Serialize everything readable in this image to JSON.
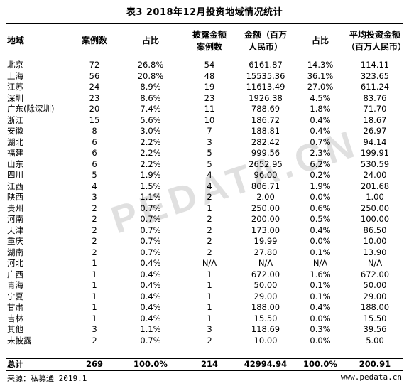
{
  "title": "表3  2018年12月投资地域情况统计",
  "headers": {
    "region": "地域",
    "cases": "案例数",
    "share": "占比",
    "disclosed_cases": "披露金额\n案例数",
    "amount": "金额（百万\n人民币）",
    "amount_share": "占比",
    "avg_amount": "平均投资金额\n（百万人民币）"
  },
  "rows": [
    [
      "北京",
      "72",
      "26.8%",
      "54",
      "6161.87",
      "14.3%",
      "114.11"
    ],
    [
      "上海",
      "56",
      "20.8%",
      "48",
      "15535.36",
      "36.1%",
      "323.65"
    ],
    [
      "江苏",
      "24",
      "8.9%",
      "19",
      "11613.49",
      "27.0%",
      "611.24"
    ],
    [
      "深圳",
      "23",
      "8.6%",
      "23",
      "1926.38",
      "4.5%",
      "83.76"
    ],
    [
      "广东(除深圳)",
      "20",
      "7.4%",
      "11",
      "788.69",
      "1.8%",
      "71.70"
    ],
    [
      "浙江",
      "15",
      "5.6%",
      "10",
      "186.72",
      "0.4%",
      "18.67"
    ],
    [
      "安徽",
      "8",
      "3.0%",
      "7",
      "188.81",
      "0.4%",
      "26.97"
    ],
    [
      "湖北",
      "6",
      "2.2%",
      "3",
      "282.42",
      "0.7%",
      "94.14"
    ],
    [
      "福建",
      "6",
      "2.2%",
      "5",
      "999.56",
      "2.3%",
      "199.91"
    ],
    [
      "山东",
      "6",
      "2.2%",
      "5",
      "2652.95",
      "6.2%",
      "530.59"
    ],
    [
      "四川",
      "5",
      "1.9%",
      "4",
      "96.00",
      "0.2%",
      "24.00"
    ],
    [
      "江西",
      "4",
      "1.5%",
      "4",
      "806.71",
      "1.9%",
      "201.68"
    ],
    [
      "陕西",
      "3",
      "1.1%",
      "2",
      "2.00",
      "0.0%",
      "1.00"
    ],
    [
      "贵州",
      "2",
      "0.7%",
      "1",
      "250.00",
      "0.6%",
      "250.00"
    ],
    [
      "河南",
      "2",
      "0.7%",
      "2",
      "200.00",
      "0.5%",
      "100.00"
    ],
    [
      "天津",
      "2",
      "0.7%",
      "2",
      "173.00",
      "0.4%",
      "86.50"
    ],
    [
      "重庆",
      "2",
      "0.7%",
      "2",
      "19.99",
      "0.0%",
      "10.00"
    ],
    [
      "湖南",
      "2",
      "0.7%",
      "2",
      "27.80",
      "0.1%",
      "13.90"
    ],
    [
      "河北",
      "1",
      "0.4%",
      "N/A",
      "N/A",
      "N/A",
      "N/A"
    ],
    [
      "广西",
      "1",
      "0.4%",
      "1",
      "672.00",
      "1.6%",
      "672.00"
    ],
    [
      "青海",
      "1",
      "0.4%",
      "1",
      "50.00",
      "0.1%",
      "50.00"
    ],
    [
      "宁夏",
      "1",
      "0.4%",
      "1",
      "29.00",
      "0.1%",
      "29.00"
    ],
    [
      "甘肃",
      "1",
      "0.4%",
      "1",
      "188.00",
      "0.4%",
      "188.00"
    ],
    [
      "吉林",
      "1",
      "0.4%",
      "1",
      "15.50",
      "0.0%",
      "15.50"
    ],
    [
      "其他",
      "3",
      "1.1%",
      "3",
      "118.69",
      "0.3%",
      "39.56"
    ],
    [
      "未披露",
      "2",
      "0.7%",
      "2",
      "10.00",
      "0.0%",
      "5.00"
    ]
  ],
  "total": [
    "总计",
    "269",
    "100.0%",
    "214",
    "42994.94",
    "100.0%",
    "200.91"
  ],
  "source": "来源：私募通 2019.1",
  "site": "www.pedata.cn",
  "watermark": "PEDATA.CN"
}
